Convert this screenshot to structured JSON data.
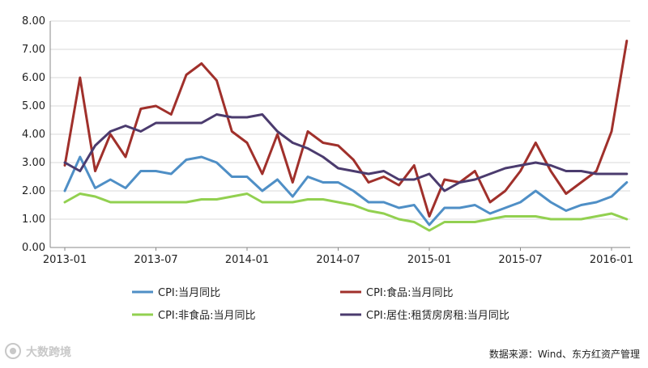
{
  "chart_data": {
    "type": "line",
    "title": "",
    "xlabel": "",
    "ylabel": "",
    "ylim": [
      0,
      8
    ],
    "y_ticks": [
      "0.00",
      "1.00",
      "2.00",
      "3.00",
      "4.00",
      "5.00",
      "6.00",
      "7.00",
      "8.00"
    ],
    "x_ticks": [
      "2013-01",
      "2013-07",
      "2014-01",
      "2014-07",
      "2015-01",
      "2015-07",
      "2016-01"
    ],
    "x": [
      "2013-01",
      "2013-02",
      "2013-03",
      "2013-04",
      "2013-05",
      "2013-06",
      "2013-07",
      "2013-08",
      "2013-09",
      "2013-10",
      "2013-11",
      "2013-12",
      "2014-01",
      "2014-02",
      "2014-03",
      "2014-04",
      "2014-05",
      "2014-06",
      "2014-07",
      "2014-08",
      "2014-09",
      "2014-10",
      "2014-11",
      "2014-12",
      "2015-01",
      "2015-02",
      "2015-03",
      "2015-04",
      "2015-05",
      "2015-06",
      "2015-07",
      "2015-08",
      "2015-09",
      "2015-10",
      "2015-11",
      "2015-12",
      "2016-01",
      "2016-02"
    ],
    "grid": true,
    "legend_position": "bottom",
    "series": [
      {
        "name": "CPI:当月同比",
        "color": "#4f8fc6",
        "values": [
          2.0,
          3.2,
          2.1,
          2.4,
          2.1,
          2.7,
          2.7,
          2.6,
          3.1,
          3.2,
          3.0,
          2.5,
          2.5,
          2.0,
          2.4,
          1.8,
          2.5,
          2.3,
          2.3,
          2.0,
          1.6,
          1.6,
          1.4,
          1.5,
          0.8,
          1.4,
          1.4,
          1.5,
          1.2,
          1.4,
          1.6,
          2.0,
          1.6,
          1.3,
          1.5,
          1.6,
          1.8,
          2.3
        ]
      },
      {
        "name": "CPI:食品:当月同比",
        "color": "#a0302b",
        "values": [
          2.9,
          6.0,
          2.7,
          4.0,
          3.2,
          4.9,
          5.0,
          4.7,
          6.1,
          6.5,
          5.9,
          4.1,
          3.7,
          2.6,
          4.0,
          2.3,
          4.1,
          3.7,
          3.6,
          3.1,
          2.3,
          2.5,
          2.2,
          2.9,
          1.1,
          2.4,
          2.3,
          2.7,
          1.6,
          2.0,
          2.7,
          3.7,
          2.7,
          1.9,
          2.3,
          2.7,
          4.1,
          7.3
        ]
      },
      {
        "name": "CPI:非食品:当月同比",
        "color": "#92d050",
        "values": [
          1.6,
          1.9,
          1.8,
          1.6,
          1.6,
          1.6,
          1.6,
          1.6,
          1.6,
          1.7,
          1.7,
          1.8,
          1.9,
          1.6,
          1.6,
          1.6,
          1.7,
          1.7,
          1.6,
          1.5,
          1.3,
          1.2,
          1.0,
          0.9,
          0.6,
          0.9,
          0.9,
          0.9,
          1.0,
          1.1,
          1.1,
          1.1,
          1.0,
          1.0,
          1.0,
          1.1,
          1.2,
          1.0
        ]
      },
      {
        "name": "CPI:居住:租赁房房租:当月同比",
        "color": "#4b3b6e",
        "values": [
          3.0,
          2.7,
          3.6,
          4.1,
          4.3,
          4.1,
          4.4,
          4.4,
          4.4,
          4.4,
          4.7,
          4.6,
          4.6,
          4.7,
          4.1,
          3.7,
          3.5,
          3.2,
          2.8,
          2.7,
          2.6,
          2.7,
          2.4,
          2.4,
          2.6,
          2.0,
          2.3,
          2.4,
          2.6,
          2.8,
          2.9,
          3.0,
          2.9,
          2.7,
          2.7,
          2.6,
          2.6,
          2.6
        ]
      }
    ]
  },
  "source": "数据来源：Wind、东方红资产管理",
  "watermark": "大数跨境"
}
